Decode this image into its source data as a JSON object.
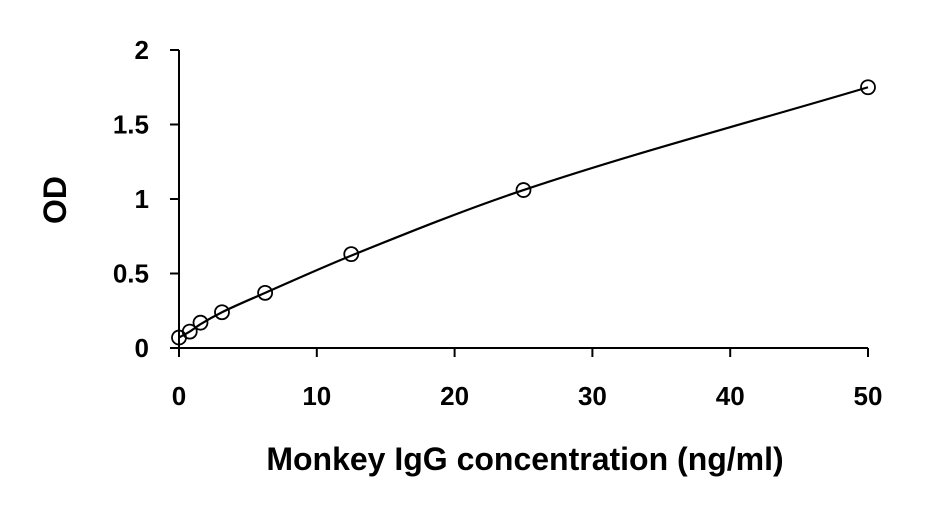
{
  "chart_data": {
    "type": "scatter",
    "title": "",
    "xlabel": "Monkey IgG concentration (ng/ml)",
    "ylabel": "OD",
    "xlim": [
      0,
      50
    ],
    "ylim": [
      0,
      2
    ],
    "x_ticks": [
      0,
      10,
      20,
      30,
      40,
      50
    ],
    "y_ticks": [
      0,
      0.5,
      1,
      1.5,
      2
    ],
    "x_tick_labels": [
      "0",
      "10",
      "20",
      "30",
      "40",
      "50"
    ],
    "y_tick_labels": [
      "0",
      "0.5",
      "1",
      "1.5",
      "2"
    ],
    "grid": false,
    "legend": "none",
    "marker": "open-circle",
    "series": [
      {
        "x": [
          0,
          0.78,
          1.56,
          3.12,
          6.25,
          12.5,
          25,
          50
        ],
        "y": [
          0.07,
          0.11,
          0.17,
          0.24,
          0.37,
          0.63,
          1.06,
          1.75
        ]
      }
    ],
    "fit_curve": {
      "type": "smooth",
      "x": [
        0,
        0.78,
        1.56,
        3.12,
        6.25,
        12.5,
        25,
        50
      ],
      "y": [
        0.07,
        0.11,
        0.16,
        0.24,
        0.37,
        0.62,
        1.06,
        1.75
      ]
    },
    "colors": {
      "axis": "#000000",
      "marker": "#000000",
      "line": "#000000"
    }
  }
}
